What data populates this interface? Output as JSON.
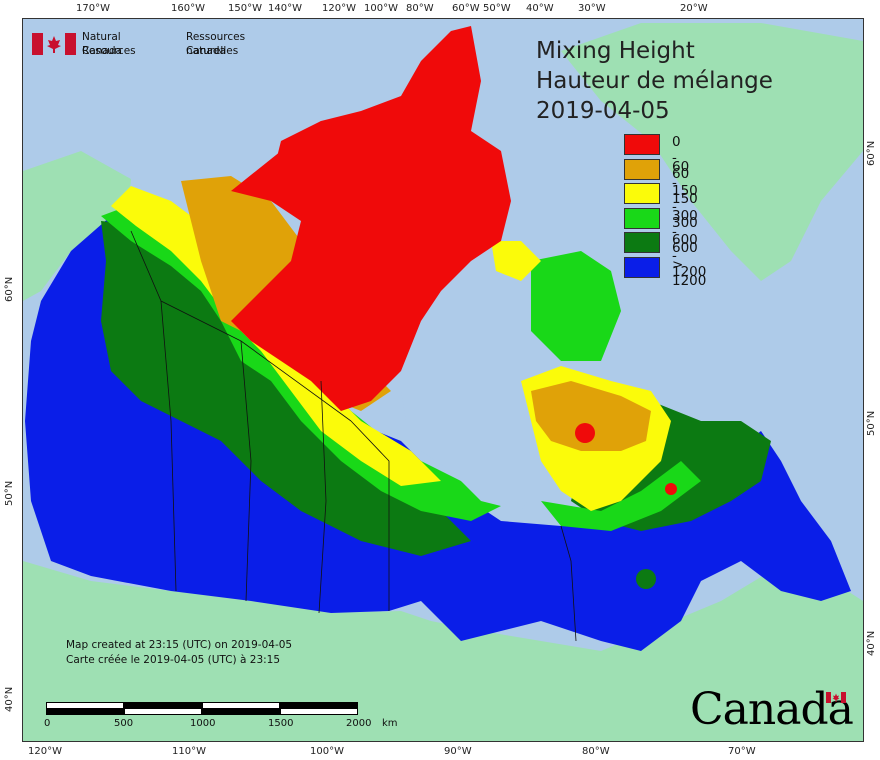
{
  "title": {
    "en": "Mixing Height",
    "fr": "Hauteur de mélange",
    "date": "2019-04-05"
  },
  "signature": {
    "en": "Natural Resources",
    "en_canada": "Canada",
    "fr": "Ressources naturelles",
    "fr_canada": "Canada"
  },
  "legend": [
    {
      "label": "0 - 60",
      "color": "#f00a0a"
    },
    {
      "label": "60 - 150",
      "color": "#e0a208"
    },
    {
      "label": "150 - 300",
      "color": "#fbfb0a"
    },
    {
      "label": "300 - 600",
      "color": "#19d818"
    },
    {
      "label": "600 - 1200",
      "color": "#0c7a12"
    },
    {
      "label": "> 1200",
      "color": "#0a1ee8"
    }
  ],
  "credit": {
    "en": "Map created at 23:15 (UTC) on 2019-04-05",
    "fr": "Carte créée le 2019-04-05 (UTC) à 23:15"
  },
  "scale": {
    "labels": [
      "0",
      "500",
      "1000",
      "1500",
      "2000"
    ],
    "unit": "km"
  },
  "graticule": {
    "top": [
      "170°W",
      "160°W",
      "150°W",
      "140°W",
      "120°W",
      "100°W",
      "80°W",
      "60°W",
      "50°W",
      "40°W",
      "30°W",
      "20°W"
    ],
    "bottom": [
      "120°W",
      "110°W",
      "100°W",
      "90°W",
      "80°W",
      "70°W"
    ],
    "left": [
      "60°N",
      "50°N",
      "40°N"
    ],
    "right": [
      "60°N",
      "50°N",
      "40°N"
    ]
  },
  "wordmark": "Canada",
  "colors": {
    "ocean": "#aecbe9",
    "foreign_land": "#9ee0b3"
  }
}
